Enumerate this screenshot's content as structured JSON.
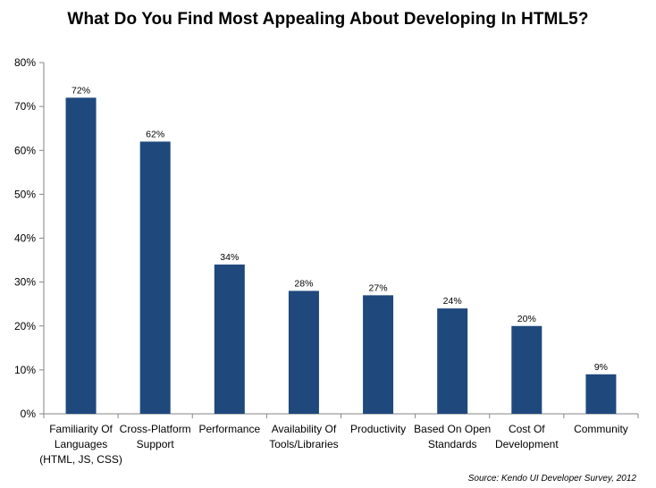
{
  "chart_data": {
    "type": "bar",
    "title": "What Do You Find Most Appealing About Developing In HTML5?",
    "categories": [
      [
        "Familiarity Of",
        "Languages",
        "(HTML, JS, CSS)"
      ],
      [
        "Cross-Platform",
        "Support"
      ],
      [
        "Performance"
      ],
      [
        "Availability Of",
        "Tools/Libraries"
      ],
      [
        "Productivity"
      ],
      [
        "Based On Open",
        "Standards"
      ],
      [
        "Cost Of",
        "Development"
      ],
      [
        "Community"
      ]
    ],
    "values": [
      72,
      62,
      34,
      28,
      27,
      24,
      20,
      9
    ],
    "data_labels": [
      "72%",
      "62%",
      "34%",
      "28%",
      "27%",
      "24%",
      "20%",
      "9%"
    ],
    "ylim": [
      0,
      80
    ],
    "yticks": [
      "0%",
      "10%",
      "20%",
      "30%",
      "40%",
      "50%",
      "60%",
      "70%",
      "80%"
    ],
    "xlabel": "",
    "ylabel": "",
    "grid": false,
    "bar_color": "#1F497D",
    "source": "Source: Kendo UI Developer Survey, 2012"
  }
}
